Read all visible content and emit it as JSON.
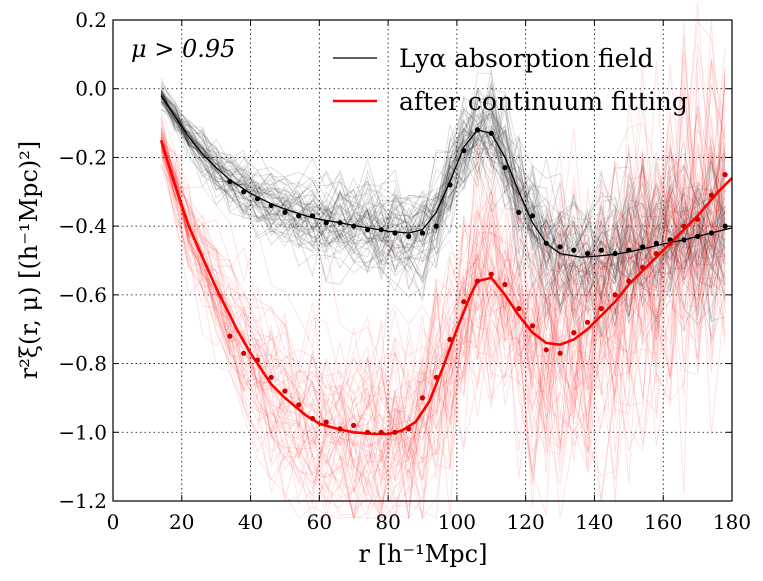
{
  "chart_data": {
    "type": "line",
    "title": "",
    "annotation": "μ > 0.95",
    "xlabel": "r [h⁻¹Mpc]",
    "ylabel": "r²ξ(r, μ) [(h⁻¹Mpc)²]",
    "xlim": [
      0,
      180
    ],
    "ylim": [
      -1.2,
      0.2
    ],
    "xticks": [
      0,
      20,
      40,
      60,
      80,
      100,
      120,
      140,
      160,
      180
    ],
    "xtick_labels": [
      "0",
      "20",
      "40",
      "60",
      "80",
      "100",
      "120",
      "140",
      "160",
      "180"
    ],
    "yticks": [
      -1.2,
      -1.0,
      -0.8,
      -0.6,
      -0.4,
      -0.2,
      0.0,
      0.2
    ],
    "ytick_labels": [
      "−1.2",
      "−1.0",
      "−0.8",
      "−0.6",
      "−0.4",
      "−0.2",
      "0.0",
      "0.2"
    ],
    "grid": true,
    "legend_position": "top-right",
    "mock_realizations": 60,
    "series": [
      {
        "name": "Lyα absorption field",
        "color": "#000000",
        "model_r": [
          14,
          16,
          18,
          20,
          22,
          26,
          30,
          34,
          40,
          46,
          50,
          56,
          60,
          66,
          70,
          76,
          80,
          86,
          90,
          94,
          98,
          102,
          106,
          110,
          114,
          118,
          122,
          126,
          130,
          136,
          140,
          146,
          150,
          156,
          160,
          166,
          170,
          176,
          180
        ],
        "model_xi": [
          -0.02,
          -0.05,
          -0.08,
          -0.11,
          -0.14,
          -0.19,
          -0.23,
          -0.265,
          -0.305,
          -0.335,
          -0.35,
          -0.37,
          -0.38,
          -0.39,
          -0.398,
          -0.408,
          -0.415,
          -0.42,
          -0.41,
          -0.36,
          -0.27,
          -0.17,
          -0.12,
          -0.13,
          -0.2,
          -0.3,
          -0.39,
          -0.45,
          -0.48,
          -0.49,
          -0.488,
          -0.482,
          -0.475,
          -0.462,
          -0.452,
          -0.44,
          -0.43,
          -0.415,
          -0.405
        ],
        "points_r": [
          34,
          38,
          42,
          46,
          50,
          54,
          58,
          62,
          66,
          70,
          74,
          78,
          82,
          86,
          90,
          94,
          98,
          102,
          106,
          110,
          114,
          118,
          122,
          126,
          130,
          134,
          138,
          142,
          146,
          150,
          154,
          158,
          162,
          166,
          170,
          174,
          178
        ],
        "points_xi": [
          -0.27,
          -0.3,
          -0.32,
          -0.34,
          -0.36,
          -0.37,
          -0.37,
          -0.39,
          -0.39,
          -0.4,
          -0.41,
          -0.41,
          -0.42,
          -0.43,
          -0.42,
          -0.4,
          -0.28,
          -0.18,
          -0.12,
          -0.13,
          -0.23,
          -0.36,
          -0.37,
          -0.45,
          -0.46,
          -0.47,
          -0.48,
          -0.47,
          -0.48,
          -0.47,
          -0.46,
          -0.45,
          -0.44,
          -0.44,
          -0.43,
          -0.42,
          -0.4
        ]
      },
      {
        "name": "after continuum fitting",
        "color": "#ff0000",
        "model_r": [
          14,
          18,
          22,
          26,
          30,
          36,
          40,
          46,
          50,
          56,
          60,
          66,
          70,
          76,
          80,
          84,
          88,
          92,
          96,
          100,
          104,
          106,
          110,
          114,
          118,
          122,
          126,
          130,
          134,
          138,
          142,
          146,
          150,
          156,
          160,
          166,
          170,
          176,
          180
        ],
        "model_xi": [
          -0.15,
          -0.28,
          -0.4,
          -0.49,
          -0.58,
          -0.7,
          -0.77,
          -0.86,
          -0.9,
          -0.95,
          -0.975,
          -0.992,
          -1.0,
          -1.005,
          -1.005,
          -0.995,
          -0.97,
          -0.91,
          -0.81,
          -0.7,
          -0.6,
          -0.56,
          -0.55,
          -0.6,
          -0.66,
          -0.71,
          -0.74,
          -0.745,
          -0.73,
          -0.7,
          -0.66,
          -0.62,
          -0.57,
          -0.51,
          -0.47,
          -0.41,
          -0.37,
          -0.3,
          -0.26
        ],
        "points_r": [
          34,
          38,
          42,
          46,
          50,
          54,
          58,
          62,
          66,
          70,
          74,
          78,
          82,
          86,
          90,
          94,
          98,
          102,
          106,
          110,
          114,
          118,
          122,
          126,
          130,
          134,
          138,
          142,
          146,
          150,
          154,
          158,
          162,
          166,
          170,
          174,
          178
        ],
        "points_xi": [
          -0.72,
          -0.77,
          -0.79,
          -0.84,
          -0.88,
          -0.92,
          -0.96,
          -0.97,
          -0.99,
          -0.98,
          -1.0,
          -1.0,
          -1.0,
          -0.99,
          -0.9,
          -0.84,
          -0.73,
          -0.62,
          -0.56,
          -0.54,
          -0.57,
          -0.64,
          -0.69,
          -0.76,
          -0.77,
          -0.71,
          -0.68,
          -0.64,
          -0.6,
          -0.56,
          -0.52,
          -0.48,
          -0.45,
          -0.4,
          -0.38,
          -0.31,
          -0.25
        ]
      }
    ]
  }
}
